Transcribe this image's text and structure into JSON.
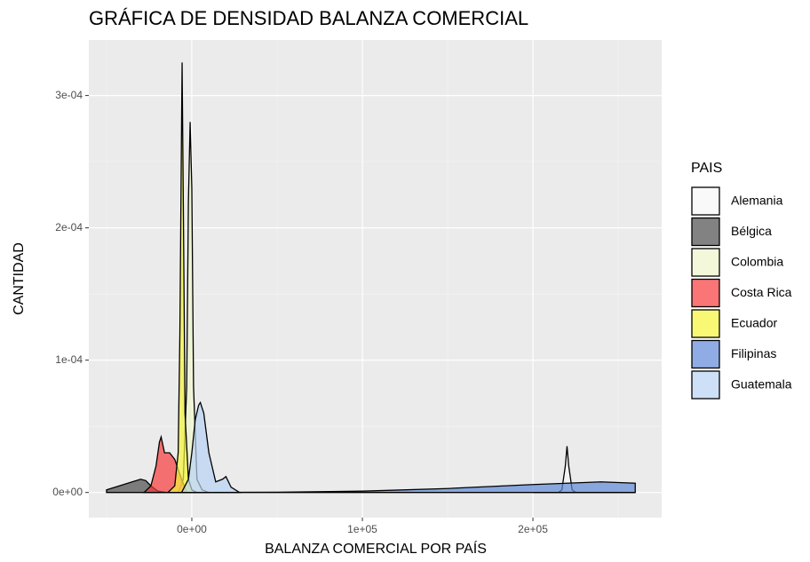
{
  "chart_data": {
    "type": "density",
    "title": "GRÁFICA DE DENSIDAD BALANZA COMERCIAL",
    "x_label": "BALANZA COMERCIAL POR PAÍS",
    "y_label": "CANTIDAD",
    "legend_title": "PAIS",
    "legend": "right",
    "grid": true,
    "xlim": [
      -60400,
      275500
    ],
    "ylim": [
      -1.9e-05,
      0.000342
    ],
    "xticks": [
      {
        "value": 0,
        "label": "0e+00"
      },
      {
        "value": 100000,
        "label": "1e+05"
      },
      {
        "value": 200000,
        "label": "2e+05"
      }
    ],
    "yticks": [
      {
        "value": 0,
        "label": "0e+00"
      },
      {
        "value": 0.0001,
        "label": "1e-04"
      },
      {
        "value": 0.0002,
        "label": "2e-04"
      },
      {
        "value": 0.0003,
        "label": "3e-04"
      }
    ],
    "xminor": [
      -50000,
      50000,
      150000,
      250000
    ],
    "yminor": [
      5e-05,
      0.00015,
      0.00025
    ],
    "series": [
      {
        "name": "Alemania",
        "color": "#f7f7f7",
        "x": [
          200000,
          215000,
          217000,
          219000,
          220000,
          221000,
          223000,
          225000,
          260000
        ],
        "values": [
          0,
          0,
          2e-06,
          2e-05,
          3.5e-05,
          2e-05,
          2e-06,
          0,
          0
        ]
      },
      {
        "name": "Bélgica",
        "color": "#4d4d4d",
        "x": [
          -50000,
          -45000,
          -40000,
          -35000,
          -30000,
          -27000,
          -24000,
          -20000,
          -15000
        ],
        "values": [
          2e-06,
          4e-06,
          6e-06,
          8e-06,
          1e-05,
          9e-06,
          5e-06,
          1e-06,
          0
        ]
      },
      {
        "name": "Colombia",
        "color": "#eef5cc",
        "x": [
          -8000,
          -5000,
          -3000,
          -2000,
          -1000,
          0,
          1000,
          3000,
          6000,
          10000
        ],
        "values": [
          0,
          1e-05,
          8e-05,
          0.00022,
          0.00028,
          0.00023,
          8e-05,
          1e-05,
          2e-06,
          0
        ]
      },
      {
        "name": "Costa Rica",
        "color": "#f83a3a",
        "x": [
          -28000,
          -24000,
          -21000,
          -19000,
          -18000,
          -16000,
          -13000,
          -10000,
          -6000,
          -3000
        ],
        "values": [
          0,
          5e-06,
          2e-05,
          3.8e-05,
          4.2e-05,
          3e-05,
          3e-05,
          2.5e-05,
          1e-05,
          0
        ]
      },
      {
        "name": "Ecuador",
        "color": "#f5f53a",
        "x": [
          -14000,
          -10000,
          -8000,
          -7000,
          -6000,
          -5700,
          -5000,
          -4000,
          -2000,
          0,
          3000
        ],
        "values": [
          0,
          5e-06,
          3e-05,
          0.00012,
          0.00028,
          0.000325,
          0.00022,
          6e-05,
          1e-05,
          2e-06,
          0
        ]
      },
      {
        "name": "Filipinas",
        "color": "#5f8ad8",
        "x": [
          -5000,
          50000,
          100000,
          150000,
          200000,
          240000,
          260000
        ],
        "values": [
          0,
          2e-07,
          1e-06,
          3e-06,
          6e-06,
          8e-06,
          7e-06
        ]
      },
      {
        "name": "Guatemala",
        "color": "#b8d3f3",
        "x": [
          -6000,
          -2000,
          0,
          2000,
          4000,
          5000,
          7000,
          10000,
          14000,
          18000,
          20000,
          23000,
          28000
        ],
        "values": [
          0,
          1e-05,
          3e-05,
          5.5e-05,
          6.6e-05,
          6.8e-05,
          6e-05,
          3e-05,
          8e-06,
          1e-05,
          1.2e-05,
          4e-06,
          0
        ]
      }
    ]
  }
}
